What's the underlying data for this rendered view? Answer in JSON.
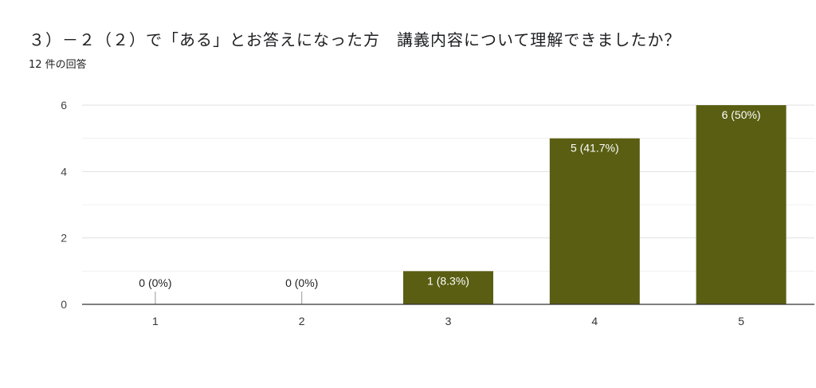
{
  "question": {
    "title": "３）－２（２）で「ある」とお答えになった方　講義内容について理解できましたか？",
    "response_count": "12 件の回答"
  },
  "chart_data": {
    "type": "bar",
    "categories": [
      "1",
      "2",
      "3",
      "4",
      "5"
    ],
    "values": [
      0,
      0,
      1,
      5,
      6
    ],
    "data_labels": [
      "0 (0%)",
      "0 (0%)",
      "1 (8.3%)",
      "5 (41.7%)",
      "6 (50%)"
    ],
    "ylim": [
      0,
      6
    ],
    "yticks": [
      0,
      2,
      4,
      6
    ],
    "grid": true,
    "bar_color": "#5a5e12",
    "legend": "none"
  }
}
